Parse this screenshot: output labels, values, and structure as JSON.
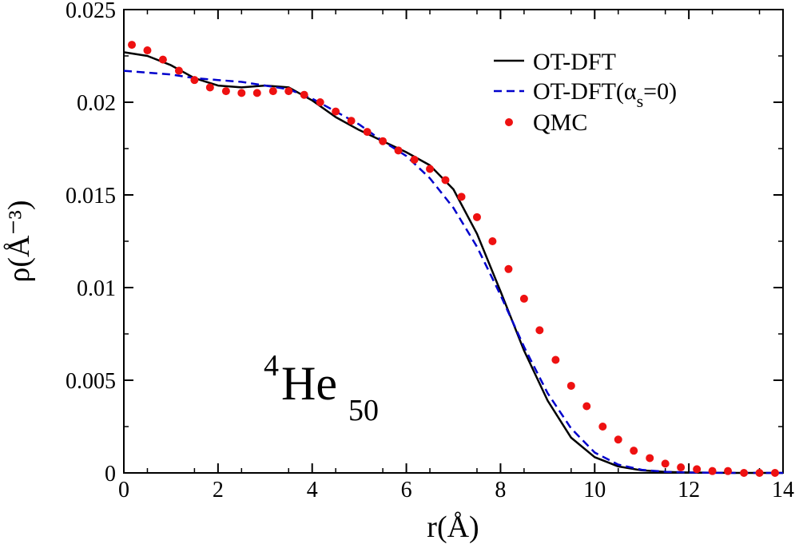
{
  "chart_data": {
    "type": "line",
    "title": "",
    "xlabel": "r(Å)",
    "ylabel": "ρ(Å⁻³)",
    "xlim": [
      0,
      14
    ],
    "ylim": [
      0,
      0.025
    ],
    "x_ticks": [
      0,
      2,
      4,
      6,
      8,
      10,
      12,
      14
    ],
    "x_tick_labels": [
      "0",
      "2",
      "4",
      "6",
      "8",
      "10",
      "12",
      "14"
    ],
    "y_ticks": [
      0,
      0.005,
      0.01,
      0.015,
      0.02,
      0.025
    ],
    "y_tick_labels": [
      "0",
      "0.005",
      "0.01",
      "0.015",
      "0.02",
      "0.025"
    ],
    "annotation": {
      "text_main": "He",
      "superscript": "4",
      "subscript": "50"
    },
    "legend_position": "top-right",
    "series": [
      {
        "name": "OT-DFT",
        "legend_label": "OT-DFT",
        "style": "solid",
        "color": "#000000",
        "x": [
          0,
          0.5,
          1.0,
          1.5,
          2.0,
          2.5,
          3.0,
          3.5,
          4.0,
          4.5,
          5.0,
          5.5,
          6.0,
          6.5,
          7.0,
          7.5,
          8.0,
          8.5,
          9.0,
          9.5,
          10.0,
          10.5,
          11.0,
          11.5,
          12.0,
          12.5,
          13.0,
          13.5,
          14.0
        ],
        "y": [
          0.0227,
          0.0225,
          0.022,
          0.0213,
          0.0209,
          0.0208,
          0.0209,
          0.0208,
          0.0201,
          0.0192,
          0.0185,
          0.0179,
          0.0173,
          0.0166,
          0.0153,
          0.0129,
          0.0098,
          0.0066,
          0.0039,
          0.0019,
          0.00085,
          0.00035,
          0.00014,
          5e-05,
          2e-05,
          1e-05,
          0.0,
          0.0,
          0.0
        ]
      },
      {
        "name": "OT-DFT(αs=0)",
        "legend_label": "OT-DFT(α",
        "legend_sub": "s",
        "legend_suffix": "=0)",
        "style": "dashed",
        "color": "#0000cc",
        "x": [
          0,
          0.5,
          1.0,
          1.5,
          2.0,
          2.5,
          3.0,
          3.5,
          4.0,
          4.5,
          5.0,
          5.5,
          6.0,
          6.5,
          7.0,
          7.5,
          8.0,
          8.5,
          9.0,
          9.5,
          10.0,
          10.5,
          11.0,
          11.5,
          12.0,
          12.5,
          13.0,
          13.5,
          14.0
        ],
        "y": [
          0.0217,
          0.0216,
          0.0215,
          0.0213,
          0.0212,
          0.0211,
          0.0209,
          0.0207,
          0.0202,
          0.0195,
          0.0188,
          0.0179,
          0.0171,
          0.0159,
          0.0143,
          0.0122,
          0.0096,
          0.0068,
          0.0043,
          0.0024,
          0.0011,
          0.00045,
          0.00017,
          6e-05,
          2e-05,
          1e-05,
          0.0,
          0.0,
          0.0
        ]
      },
      {
        "name": "QMC",
        "legend_label": "QMC",
        "style": "points",
        "color": "#ee1111",
        "x": [
          0.17,
          0.5,
          0.83,
          1.17,
          1.5,
          1.83,
          2.17,
          2.5,
          2.83,
          3.17,
          3.5,
          3.83,
          4.17,
          4.5,
          4.83,
          5.17,
          5.5,
          5.83,
          6.17,
          6.5,
          6.83,
          7.17,
          7.5,
          7.83,
          8.17,
          8.5,
          8.83,
          9.17,
          9.5,
          9.83,
          10.17,
          10.5,
          10.83,
          11.17,
          11.5,
          11.83,
          12.17,
          12.5,
          12.83,
          13.17,
          13.5,
          13.83
        ],
        "y": [
          0.0231,
          0.0228,
          0.0223,
          0.0217,
          0.0212,
          0.0208,
          0.0206,
          0.0205,
          0.0205,
          0.0206,
          0.0206,
          0.0204,
          0.02,
          0.0195,
          0.019,
          0.0184,
          0.0179,
          0.0174,
          0.0169,
          0.0164,
          0.0158,
          0.0149,
          0.0138,
          0.0125,
          0.011,
          0.0094,
          0.0077,
          0.0061,
          0.0047,
          0.0036,
          0.0025,
          0.0018,
          0.0012,
          0.0008,
          0.0005,
          0.0003,
          0.0002,
          0.0001,
          0.0001,
          0.0,
          0.0,
          0.0
        ]
      }
    ]
  }
}
